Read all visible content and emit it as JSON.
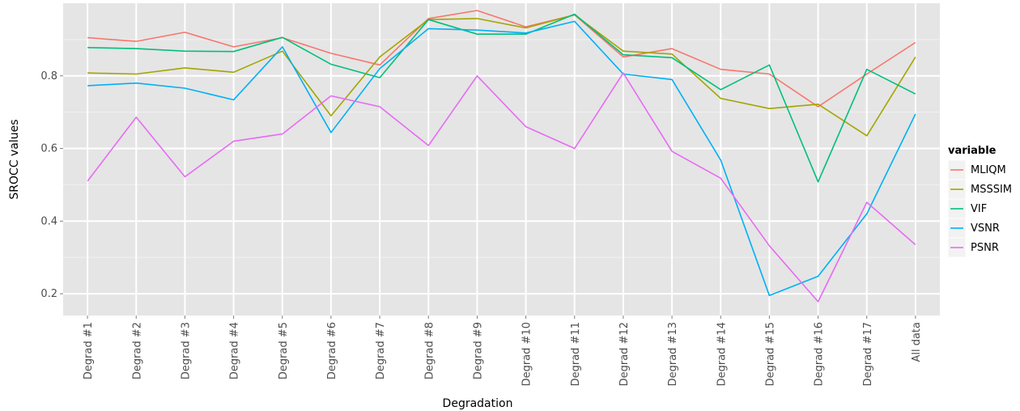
{
  "chart_data": {
    "type": "line",
    "title": "",
    "xlabel": "Degradation",
    "ylabel": "SROCC values",
    "categories": [
      "Degrad #1",
      "Degrad #2",
      "Degrad #3",
      "Degrad #4",
      "Degrad #5",
      "Degrad #6",
      "Degrad #7",
      "Degrad #8",
      "Degrad #9",
      "Degrad #10",
      "Degrad #11",
      "Degrad #12",
      "Degrad #13",
      "Degrad #14",
      "Degrad #15",
      "Degrad #16",
      "Degrad #17",
      "All data"
    ],
    "ylim": [
      0.14,
      1.0
    ],
    "yticks": [
      "0.2",
      "0.4",
      "0.6",
      "0.8"
    ],
    "grid": true,
    "legend": {
      "title": "variable",
      "position": "right"
    },
    "series": [
      {
        "name": "MLIQM",
        "color": "#F8766D",
        "values": [
          0.905,
          0.895,
          0.92,
          0.88,
          0.905,
          0.862,
          0.83,
          0.958,
          0.98,
          0.935,
          0.968,
          0.852,
          0.875,
          0.818,
          0.805,
          0.715,
          0.805,
          0.892
        ]
      },
      {
        "name": "MSSSIM",
        "color": "#A3A500",
        "values": [
          0.808,
          0.805,
          0.822,
          0.81,
          0.868,
          0.69,
          0.852,
          0.955,
          0.958,
          0.932,
          0.968,
          0.868,
          0.86,
          0.738,
          0.71,
          0.722,
          0.635,
          0.852
        ]
      },
      {
        "name": "VIF",
        "color": "#00BF7D",
        "values": [
          0.878,
          0.875,
          0.868,
          0.867,
          0.906,
          0.832,
          0.795,
          0.955,
          0.915,
          0.915,
          0.97,
          0.858,
          0.85,
          0.762,
          0.83,
          0.508,
          0.818,
          0.75
        ]
      },
      {
        "name": "VSNR",
        "color": "#00B0F6",
        "values": [
          0.773,
          0.78,
          0.766,
          0.734,
          0.88,
          0.644,
          0.82,
          0.93,
          0.926,
          0.918,
          0.95,
          0.805,
          0.79,
          0.568,
          0.195,
          0.248,
          0.42,
          0.695
        ]
      },
      {
        "name": "PSNR",
        "color": "#E76BF3",
        "values": [
          0.51,
          0.686,
          0.522,
          0.62,
          0.64,
          0.745,
          0.715,
          0.608,
          0.8,
          0.66,
          0.6,
          0.808,
          0.592,
          0.518,
          0.332,
          0.178,
          0.452,
          0.335
        ]
      }
    ]
  }
}
